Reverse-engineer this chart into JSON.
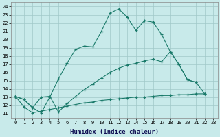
{
  "xlabel": "Humidex (Indice chaleur)",
  "bg_color": "#c8eaea",
  "grid_color": "#a0c8c8",
  "line_color": "#1a7a6a",
  "xlim": [
    -0.5,
    23.5
  ],
  "ylim": [
    10.5,
    24.5
  ],
  "line1_x": [
    0,
    1,
    2,
    3,
    4,
    5,
    6,
    7,
    8,
    9,
    10,
    11,
    12,
    13,
    14,
    15,
    16,
    17,
    18,
    19,
    20,
    21
  ],
  "line1_y": [
    13.1,
    12.7,
    11.7,
    11.1,
    13.0,
    15.2,
    17.1,
    18.8,
    19.2,
    19.1,
    21.0,
    23.2,
    23.7,
    22.7,
    21.1,
    22.3,
    22.1,
    20.6,
    18.5,
    17.0,
    15.1,
    14.8
  ],
  "line2_x": [
    0,
    1,
    2,
    3,
    4,
    5,
    6,
    7,
    8,
    9,
    10,
    11,
    12,
    13,
    14,
    15,
    16,
    17,
    18,
    19,
    20,
    21,
    22
  ],
  "line2_y": [
    13.1,
    12.7,
    11.7,
    13.0,
    13.1,
    11.2,
    12.2,
    13.1,
    13.9,
    14.6,
    15.3,
    16.0,
    16.5,
    16.9,
    17.1,
    17.4,
    17.6,
    17.3,
    18.5,
    17.0,
    15.1,
    14.8,
    13.4
  ],
  "line3_x": [
    0,
    1,
    2,
    3,
    4,
    5,
    6,
    7,
    8,
    9,
    10,
    11,
    12,
    13,
    14,
    15,
    16,
    17,
    18,
    19,
    20,
    21,
    22
  ],
  "line3_y": [
    13.1,
    11.8,
    11.1,
    11.3,
    11.5,
    11.7,
    11.9,
    12.1,
    12.3,
    12.4,
    12.6,
    12.7,
    12.8,
    12.9,
    13.0,
    13.0,
    13.1,
    13.2,
    13.2,
    13.3,
    13.3,
    13.4,
    13.4
  ]
}
